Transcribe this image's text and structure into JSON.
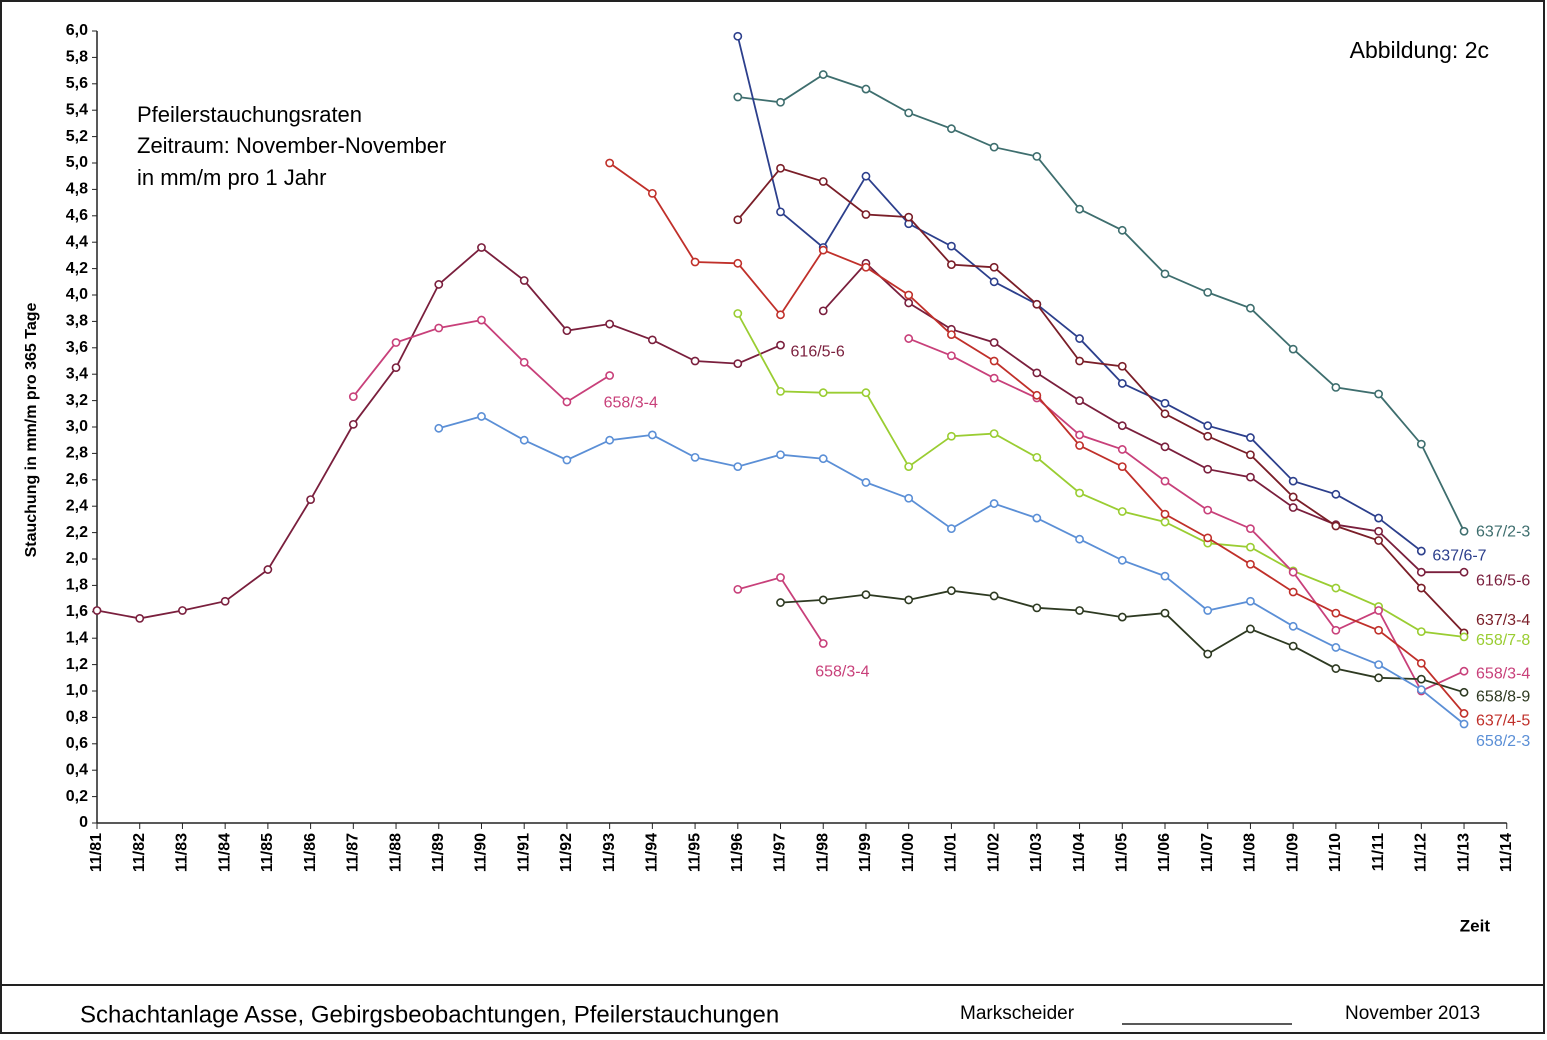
{
  "chart_data": {
    "type": "line",
    "figure_label": "Abbildung: 2c",
    "title_lines": [
      "Pfeilerstauchungsraten",
      "Zeitraum: November-November",
      "in mm/m pro 1 Jahr"
    ],
    "ylabel": "Stauchung in mm/m pro 365 Tage",
    "xlabel": "Zeit",
    "categories": [
      "11/81",
      "11/82",
      "11/83",
      "11/84",
      "11/85",
      "11/86",
      "11/87",
      "11/88",
      "11/89",
      "11/90",
      "11/91",
      "11/92",
      "11/93",
      "11/94",
      "11/95",
      "11/96",
      "11/97",
      "11/98",
      "11/99",
      "11/00",
      "11/01",
      "11/02",
      "11/03",
      "11/04",
      "11/05",
      "11/06",
      "11/07",
      "11/08",
      "11/09",
      "11/10",
      "11/11",
      "11/12",
      "11/13",
      "11/14"
    ],
    "ylim": [
      0,
      6
    ],
    "yticks": [
      {
        "value": 6,
        "label": "6,0"
      },
      {
        "value": 5.8,
        "label": "5,8"
      },
      {
        "value": 5.6,
        "label": "5,6"
      },
      {
        "value": 5.4,
        "label": "5,4"
      },
      {
        "value": 5.2,
        "label": "5,2"
      },
      {
        "value": 5,
        "label": "5,0"
      },
      {
        "value": 4.8,
        "label": "4,8"
      },
      {
        "value": 4.6,
        "label": "4,6"
      },
      {
        "value": 4.4,
        "label": "4,4"
      },
      {
        "value": 4.2,
        "label": "4,2"
      },
      {
        "value": 4,
        "label": "4,0"
      },
      {
        "value": 3.8,
        "label": "3,8"
      },
      {
        "value": 3.6,
        "label": "3,6"
      },
      {
        "value": 3.4,
        "label": "3,4"
      },
      {
        "value": 3.2,
        "label": "3,2"
      },
      {
        "value": 3,
        "label": "3,0"
      },
      {
        "value": 2.8,
        "label": "2,8"
      },
      {
        "value": 2.6,
        "label": "2,6"
      },
      {
        "value": 2.4,
        "label": "2,4"
      },
      {
        "value": 2.2,
        "label": "2,2"
      },
      {
        "value": 2,
        "label": "2,0"
      },
      {
        "value": 1.8,
        "label": "1,8"
      },
      {
        "value": 1.6,
        "label": "1,6"
      },
      {
        "value": 1.4,
        "label": "1,4"
      },
      {
        "value": 1.2,
        "label": "1,2"
      },
      {
        "value": 1,
        "label": "1,0"
      },
      {
        "value": 0.8,
        "label": "0,8"
      },
      {
        "value": 0.6,
        "label": "0,6"
      },
      {
        "value": 0.4,
        "label": "0,4"
      },
      {
        "value": 0.2,
        "label": "0,2"
      },
      0
    ],
    "grid": false,
    "series": [
      {
        "name": "616/5-6",
        "color": "#7a1f3d",
        "values": [
          1.61,
          1.55,
          1.61,
          1.68,
          1.92,
          2.45,
          3.02,
          3.45,
          4.08,
          4.36,
          4.11,
          3.73,
          3.78,
          3.66,
          3.5,
          3.48,
          3.62,
          null,
          null,
          null,
          null,
          null,
          null,
          null,
          null,
          null,
          null,
          null,
          null,
          null,
          null,
          null,
          null,
          null
        ]
      },
      {
        "name": "658/3-4",
        "color": "#c8407a",
        "values": [
          null,
          null,
          null,
          null,
          null,
          null,
          3.23,
          3.64,
          3.75,
          3.81,
          3.49,
          3.19,
          3.39,
          null,
          null,
          null,
          null,
          null,
          null,
          null,
          null,
          null,
          null,
          null,
          null,
          null,
          null,
          null,
          null,
          null,
          null,
          null,
          null,
          null
        ]
      },
      {
        "name": "658/3-4",
        "color": "#c8407a",
        "values": [
          null,
          null,
          null,
          null,
          null,
          null,
          null,
          null,
          null,
          null,
          null,
          null,
          null,
          null,
          null,
          1.77,
          1.86,
          1.36,
          null,
          null,
          null,
          null,
          null,
          null,
          null,
          null,
          null,
          null,
          null,
          null,
          null,
          null,
          null,
          null
        ]
      },
      {
        "name": "637/2-3",
        "color": "#3e6e6e",
        "values": [
          null,
          null,
          null,
          null,
          null,
          null,
          null,
          null,
          null,
          null,
          null,
          null,
          null,
          null,
          null,
          5.5,
          5.46,
          5.67,
          5.56,
          5.38,
          5.26,
          5.12,
          5.05,
          4.65,
          4.49,
          4.16,
          4.02,
          3.9,
          3.59,
          3.3,
          3.25,
          2.87,
          2.21,
          null
        ]
      },
      {
        "name": "637/6-7",
        "color": "#2c3f8c",
        "values": [
          null,
          null,
          null,
          null,
          null,
          null,
          null,
          null,
          null,
          null,
          null,
          null,
          null,
          null,
          null,
          5.96,
          4.63,
          4.36,
          4.9,
          4.54,
          4.37,
          4.1,
          3.93,
          3.67,
          3.33,
          3.18,
          3.01,
          2.92,
          2.59,
          2.49,
          2.31,
          2.06,
          null,
          null
        ]
      },
      {
        "name": "616/5-6",
        "color": "#7a1f3d",
        "values": [
          null,
          null,
          null,
          null,
          null,
          null,
          null,
          null,
          null,
          null,
          null,
          null,
          null,
          null,
          null,
          null,
          null,
          3.88,
          4.24,
          3.94,
          3.74,
          3.64,
          3.41,
          3.2,
          3.01,
          2.85,
          2.68,
          2.62,
          2.39,
          2.26,
          2.21,
          1.9,
          1.9,
          null
        ]
      },
      {
        "name": "637/3-4",
        "color": "#7a1e28",
        "values": [
          null,
          null,
          null,
          null,
          null,
          null,
          null,
          null,
          null,
          null,
          null,
          null,
          null,
          null,
          null,
          4.57,
          4.96,
          4.86,
          4.61,
          4.59,
          4.23,
          4.21,
          3.93,
          3.5,
          3.46,
          3.1,
          2.93,
          2.79,
          2.47,
          2.25,
          2.14,
          1.78,
          1.44,
          null
        ]
      },
      {
        "name": "658/7-8",
        "color": "#9acd32",
        "values": [
          null,
          null,
          null,
          null,
          null,
          null,
          null,
          null,
          null,
          null,
          null,
          null,
          null,
          null,
          null,
          3.86,
          3.27,
          3.26,
          3.26,
          2.7,
          2.93,
          2.95,
          2.77,
          2.5,
          2.36,
          2.28,
          2.12,
          2.09,
          1.91,
          1.78,
          1.64,
          1.45,
          1.41,
          null
        ]
      },
      {
        "name": "658/3-4",
        "color": "#c8407a",
        "values": [
          null,
          null,
          null,
          null,
          null,
          null,
          null,
          null,
          null,
          null,
          null,
          null,
          null,
          null,
          null,
          null,
          null,
          null,
          null,
          3.67,
          3.54,
          3.37,
          3.22,
          2.94,
          2.83,
          2.59,
          2.37,
          2.23,
          1.9,
          1.46,
          1.61,
          1.0,
          1.15,
          null
        ]
      },
      {
        "name": "658/8-9",
        "color": "#2e3a22",
        "values": [
          null,
          null,
          null,
          null,
          null,
          null,
          null,
          null,
          null,
          null,
          null,
          null,
          null,
          null,
          null,
          null,
          1.67,
          1.69,
          1.73,
          1.69,
          1.76,
          1.72,
          1.63,
          1.61,
          1.56,
          1.59,
          1.28,
          1.47,
          1.34,
          1.17,
          1.1,
          1.09,
          0.99,
          null
        ]
      },
      {
        "name": "637/4-5",
        "color": "#c0302a",
        "values": [
          null,
          null,
          null,
          null,
          null,
          null,
          null,
          null,
          null,
          null,
          null,
          null,
          5.0,
          4.77,
          4.25,
          4.24,
          3.85,
          4.34,
          4.21,
          4.0,
          3.7,
          3.5,
          3.24,
          2.86,
          2.7,
          2.34,
          2.16,
          1.96,
          1.75,
          1.59,
          1.46,
          1.21,
          0.83,
          null
        ]
      },
      {
        "name": "658/2-3",
        "color": "#5b8fd6",
        "values": [
          null,
          null,
          null,
          null,
          null,
          null,
          null,
          null,
          2.99,
          3.08,
          2.9,
          2.75,
          2.9,
          2.94,
          2.77,
          2.7,
          2.79,
          2.76,
          2.58,
          2.46,
          2.23,
          2.42,
          2.31,
          2.15,
          1.99,
          1.87,
          1.61,
          1.68,
          1.49,
          1.33,
          1.2,
          1.01,
          0.75,
          null
        ]
      }
    ]
  },
  "footer": {
    "left": "Schachtanlage Asse, Gebirgsbeobachtungen, Pfeilerstauchungen",
    "signature": "Markscheider",
    "date": "November 2013"
  }
}
